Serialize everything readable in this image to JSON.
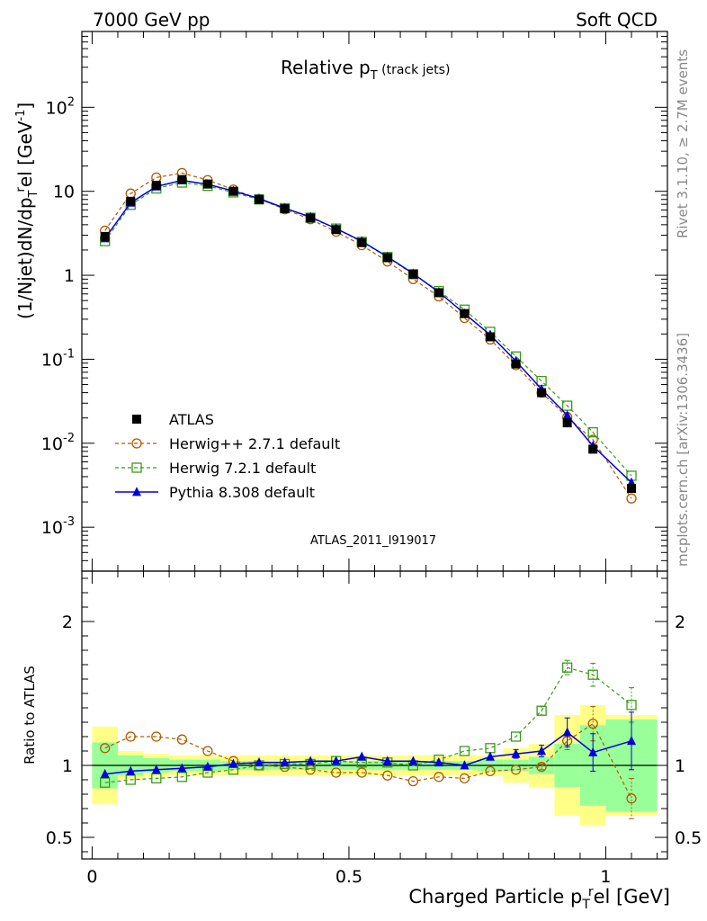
{
  "header": {
    "left": "7000 GeV pp",
    "right": "Soft QCD"
  },
  "side_labels": {
    "rivet": "Rivet 3.1.10, ≥ 2.7M events",
    "mcplots": "mcplots.cern.ch [arXiv:1306.3436]"
  },
  "chart_data": [
    {
      "type": "line",
      "panel": "main",
      "title": "Relative p_T (track jets)",
      "ylabel": "(1/Njet)dN/dp_T^rel [GeV^-1]",
      "yscale": "log",
      "ylim": [
        0.0003,
        800
      ],
      "xlim": [
        -0.02,
        1.12
      ],
      "yticks": [
        "10^-3",
        "10^-2",
        "10^-1",
        "1",
        "10",
        "10^2"
      ],
      "watermark": "ATLAS_2011_I919017",
      "legend_position": "lower-left",
      "x": [
        0.025,
        0.075,
        0.125,
        0.175,
        0.225,
        0.275,
        0.325,
        0.375,
        0.425,
        0.475,
        0.525,
        0.575,
        0.625,
        0.675,
        0.725,
        0.775,
        0.825,
        0.875,
        0.925,
        0.975,
        1.05
      ],
      "series": [
        {
          "name": "ATLAS",
          "color": "#000000",
          "marker": "square-filled",
          "values": [
            2.9,
            7.6,
            11.8,
            13.8,
            12.2,
            10.0,
            8.0,
            6.2,
            4.8,
            3.5,
            2.45,
            1.62,
            1.03,
            0.62,
            0.35,
            0.185,
            0.088,
            0.04,
            0.0175,
            0.0085,
            0.0029
          ]
        },
        {
          "name": "Herwig++ 2.7.1 default",
          "color": "#b05a00",
          "marker": "circle-open",
          "dashed": true,
          "values": [
            3.4,
            9.4,
            14.6,
            16.5,
            13.6,
            10.5,
            8.1,
            6.1,
            4.65,
            3.3,
            2.28,
            1.46,
            0.9,
            0.56,
            0.31,
            0.172,
            0.085,
            0.04,
            0.0205,
            0.011,
            0.0022
          ]
        },
        {
          "name": "Herwig 7.2.1 default",
          "color": "#3a9a1a",
          "marker": "square-open",
          "dashed": true,
          "values": [
            2.55,
            6.9,
            10.8,
            12.7,
            11.6,
            9.7,
            8.0,
            6.3,
            4.85,
            3.6,
            2.5,
            1.65,
            1.03,
            0.65,
            0.39,
            0.212,
            0.108,
            0.055,
            0.028,
            0.0135,
            0.0041
          ]
        },
        {
          "name": "Pythia 8.308 default",
          "color": "#0000dd",
          "marker": "triangle-filled",
          "values": [
            2.75,
            7.3,
            11.4,
            13.5,
            12.1,
            10.1,
            8.2,
            6.3,
            4.95,
            3.6,
            2.55,
            1.66,
            1.05,
            0.63,
            0.35,
            0.195,
            0.095,
            0.044,
            0.0215,
            0.0093,
            0.0034
          ]
        }
      ]
    },
    {
      "type": "line",
      "panel": "ratio",
      "ylabel": "Ratio to ATLAS",
      "xlabel": "Charged Particle p_T^rel [GeV]",
      "ylim": [
        0.35,
        2.35
      ],
      "xlim": [
        -0.02,
        1.12
      ],
      "xticks": [
        "0",
        "0.5",
        "1"
      ],
      "yticks": [
        "0.5",
        "1",
        "2"
      ],
      "x": [
        0.025,
        0.075,
        0.125,
        0.175,
        0.225,
        0.275,
        0.325,
        0.375,
        0.425,
        0.475,
        0.525,
        0.575,
        0.625,
        0.675,
        0.725,
        0.775,
        0.825,
        0.875,
        0.925,
        0.975,
        1.05
      ],
      "bin_edges": [
        0,
        0.05,
        0.1,
        0.15,
        0.2,
        0.25,
        0.3,
        0.35,
        0.4,
        0.45,
        0.5,
        0.55,
        0.6,
        0.65,
        0.7,
        0.75,
        0.8,
        0.85,
        0.9,
        0.95,
        1.0,
        1.1
      ],
      "band_stat": [
        0.16,
        0.07,
        0.05,
        0.04,
        0.04,
        0.03,
        0.03,
        0.03,
        0.03,
        0.03,
        0.03,
        0.03,
        0.03,
        0.03,
        0.03,
        0.04,
        0.04,
        0.06,
        0.15,
        0.28,
        0.32
      ],
      "band_total": [
        0.27,
        0.1,
        0.08,
        0.07,
        0.07,
        0.07,
        0.07,
        0.07,
        0.07,
        0.07,
        0.07,
        0.07,
        0.07,
        0.07,
        0.07,
        0.07,
        0.12,
        0.15,
        0.35,
        0.42,
        0.35
      ],
      "series": [
        {
          "name": "Herwig++ 2.7.1 default",
          "color": "#b05a00",
          "marker": "circle-open",
          "dashed": true,
          "values": [
            1.12,
            1.2,
            1.2,
            1.18,
            1.1,
            1.03,
            1.0,
            0.99,
            0.97,
            0.95,
            0.95,
            0.93,
            0.89,
            0.92,
            0.91,
            0.96,
            0.97,
            0.99,
            1.17,
            1.29,
            0.77
          ],
          "errors": [
            0,
            0,
            0,
            0,
            0,
            0,
            0,
            0,
            0,
            0,
            0,
            0,
            0,
            0,
            0,
            0,
            0,
            0.02,
            0.06,
            0.12,
            0.14
          ]
        },
        {
          "name": "Herwig 7.2.1 default",
          "color": "#3a9a1a",
          "marker": "square-open",
          "dashed": true,
          "values": [
            0.88,
            0.9,
            0.91,
            0.92,
            0.95,
            0.97,
            1.0,
            1.01,
            1.01,
            1.03,
            1.02,
            1.02,
            1.0,
            1.04,
            1.1,
            1.12,
            1.2,
            1.38,
            1.68,
            1.63,
            1.42
          ],
          "errors": [
            0,
            0,
            0,
            0,
            0,
            0,
            0,
            0,
            0,
            0,
            0,
            0,
            0,
            0,
            0,
            0,
            0,
            0.03,
            0.05,
            0.08,
            0.12
          ]
        },
        {
          "name": "Pythia 8.308 default",
          "color": "#0000dd",
          "marker": "triangle-filled",
          "values": [
            0.94,
            0.96,
            0.97,
            0.98,
            0.99,
            1.01,
            1.02,
            1.02,
            1.03,
            1.03,
            1.06,
            1.03,
            1.03,
            1.02,
            1.0,
            1.06,
            1.08,
            1.1,
            1.23,
            1.09,
            1.17
          ],
          "errors": [
            0,
            0,
            0,
            0,
            0,
            0,
            0,
            0,
            0,
            0,
            0,
            0,
            0,
            0,
            0,
            0,
            0.03,
            0.04,
            0.1,
            0.13,
            0.2
          ]
        }
      ]
    }
  ]
}
